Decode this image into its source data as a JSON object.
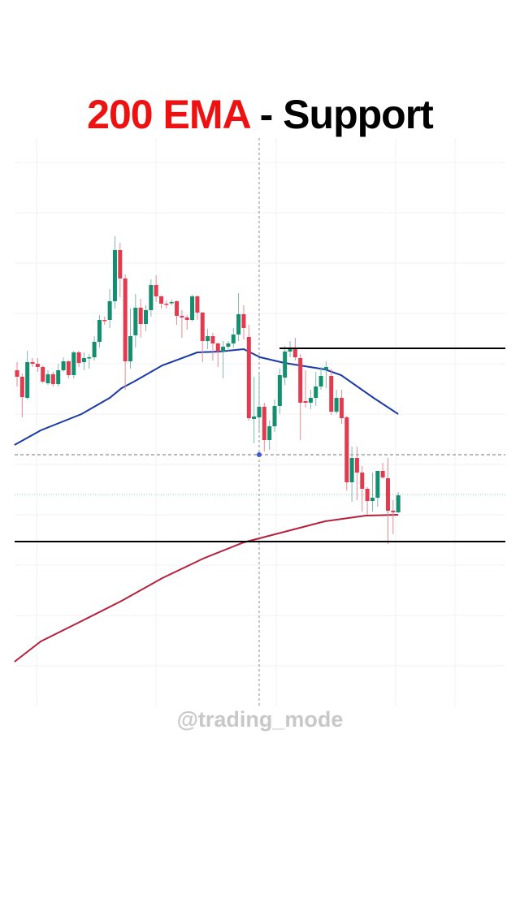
{
  "title": {
    "highlight": "200 EMA",
    "rest": " - Support",
    "highlight_color": "#ee1111"
  },
  "watermark": "@trading_mode",
  "chart_data": {
    "type": "candlestick",
    "title": "200 EMA - Support",
    "grid": true,
    "colors": {
      "up": "#138f6f",
      "down": "#e23a4e",
      "ema_fast": "#1a3aa8",
      "ema_200": "#b5213c",
      "level": "#000000"
    },
    "candles_ochl_note": "each candle is [open, close, high, low] in price units",
    "candles": [
      [
        122,
        118,
        127,
        112
      ],
      [
        118,
        105.5,
        120,
        93
      ],
      [
        105,
        127,
        134,
        104
      ],
      [
        127,
        126,
        129.5,
        124
      ],
      [
        126,
        124,
        129.5,
        121
      ],
      [
        124,
        115,
        125,
        114
      ],
      [
        114,
        119.5,
        122,
        113
      ],
      [
        119.5,
        113.5,
        121,
        112
      ],
      [
        113.5,
        122,
        126,
        112
      ],
      [
        122,
        127.5,
        130,
        121
      ],
      [
        127.5,
        119,
        128,
        117
      ],
      [
        119,
        133,
        134,
        117
      ],
      [
        133,
        126.5,
        134,
        124
      ],
      [
        127,
        129.5,
        133,
        122
      ],
      [
        129.5,
        130,
        132,
        123
      ],
      [
        130,
        139.5,
        143,
        128
      ],
      [
        139.5,
        153,
        156,
        136
      ],
      [
        153,
        152.5,
        155,
        150
      ],
      [
        153,
        164.5,
        172,
        148
      ],
      [
        164.5,
        196,
        204.5,
        160
      ],
      [
        196,
        178.5,
        200.5,
        167
      ],
      [
        178.5,
        127.5,
        181,
        110
      ],
      [
        127.5,
        143,
        160,
        123
      ],
      [
        143.5,
        160.5,
        169,
        136
      ],
      [
        160.5,
        150.5,
        166,
        142
      ],
      [
        150.5,
        159,
        162,
        146
      ],
      [
        159,
        174.5,
        178,
        155
      ],
      [
        174.5,
        167.5,
        180.5,
        164
      ],
      [
        167.5,
        163,
        168,
        160
      ],
      [
        163,
        162.5,
        165,
        160
      ],
      [
        163.5,
        164,
        165.5,
        162
      ],
      [
        164.5,
        155.5,
        165,
        150
      ],
      [
        155.5,
        154.5,
        159,
        142
      ],
      [
        154.5,
        153,
        156,
        147
      ],
      [
        153,
        167.5,
        168.5,
        152
      ],
      [
        167.5,
        157.5,
        168,
        153
      ],
      [
        157.5,
        140,
        158,
        127
      ],
      [
        140,
        143,
        147.5,
        135
      ],
      [
        143,
        138.5,
        145,
        128
      ],
      [
        138.5,
        133.5,
        139,
        124
      ],
      [
        133.5,
        136.5,
        140,
        117
      ],
      [
        136.5,
        138.5,
        140,
        134
      ],
      [
        138.5,
        144,
        148,
        136
      ],
      [
        144,
        156.5,
        169.5,
        140
      ],
      [
        156.5,
        148,
        162,
        141
      ],
      [
        142.5,
        92.5,
        150,
        91
      ],
      [
        92,
        93.5,
        118,
        77
      ],
      [
        93,
        99.5,
        120,
        85
      ],
      [
        99.5,
        79,
        102,
        72
      ],
      [
        79,
        87.5,
        91,
        73
      ],
      [
        87.5,
        100,
        104,
        84
      ],
      [
        100,
        119,
        123,
        95
      ],
      [
        117.5,
        133.5,
        137,
        113
      ],
      [
        133.5,
        135.5,
        140,
        130
      ],
      [
        136,
        130,
        142,
        128
      ],
      [
        129.5,
        102,
        132,
        79
      ],
      [
        103,
        102,
        122,
        99
      ],
      [
        102,
        105,
        110,
        98
      ],
      [
        105,
        112,
        121,
        100
      ],
      [
        112,
        118.5,
        124,
        110
      ],
      [
        122.5,
        124,
        127.5,
        111
      ],
      [
        118.5,
        96.5,
        123,
        94.5
      ],
      [
        96.5,
        105,
        110,
        95
      ],
      [
        105,
        92.5,
        110,
        89
      ],
      [
        93,
        53,
        94,
        48
      ],
      [
        53,
        68,
        75,
        41
      ],
      [
        68,
        59,
        75,
        42
      ],
      [
        59,
        49,
        63,
        35
      ],
      [
        49,
        41.5,
        50,
        33
      ],
      [
        41.5,
        43.5,
        59,
        35
      ],
      [
        43.5,
        60,
        60,
        38
      ],
      [
        60,
        56,
        65,
        55
      ],
      [
        55.5,
        35.5,
        68,
        15
      ],
      [
        35.5,
        34.5,
        42,
        21
      ],
      [
        34.5,
        45,
        47,
        34
      ]
    ],
    "ema_fast": [
      [
        0.5,
        76
      ],
      [
        5.6,
        85
      ],
      [
        13.5,
        95
      ],
      [
        19,
        105
      ],
      [
        21.3,
        111
      ],
      [
        23.7,
        115
      ],
      [
        29.2,
        125
      ],
      [
        36,
        133
      ],
      [
        40.3,
        133.5
      ],
      [
        45,
        135
      ],
      [
        48.2,
        130
      ],
      [
        52.9,
        126.5
      ],
      [
        60.8,
        122.5
      ],
      [
        63.9,
        119
      ],
      [
        70.2,
        105
      ],
      [
        75,
        95
      ]
    ],
    "ema_200": [
      [
        0.5,
        -57.5
      ],
      [
        5.6,
        -45
      ],
      [
        13.5,
        -32.5
      ],
      [
        21.3,
        -20
      ],
      [
        29.2,
        -6
      ],
      [
        37.1,
        6
      ],
      [
        45,
        16
      ],
      [
        52.9,
        22.5
      ],
      [
        60.8,
        29
      ],
      [
        68.7,
        32.5
      ],
      [
        75,
        33
      ]
    ],
    "levels": {
      "resistance": 135.5,
      "support": 16.5,
      "crosshair_price": 70,
      "last_price": 45.5
    },
    "crosshair_candle": 48
  }
}
